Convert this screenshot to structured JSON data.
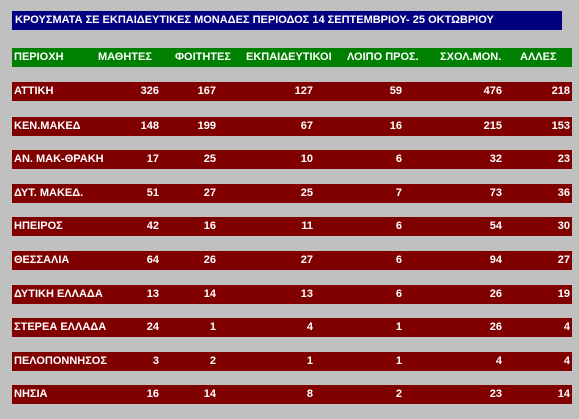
{
  "title": "ΚΡΟΥΣΜΑΤΑ ΣΕ ΕΚΠΑΙΔΕΥΤΙΚΕΣ ΜΟΝΑΔΕΣ  ΠΕΡΙΟΔΟΣ 14 ΣΕΠΤΕΜΒΡΙΟΥ-  25 ΟΚΤΩΒΡΙΟΥ",
  "headers": [
    "ΠΕΡΙΟΧΗ",
    "ΜΑΘΗΤΕΣ",
    "ΦΟΙΤΗΤΕΣ",
    "ΕΚΠΑΙΔΕΥΤΙΚΟΙ",
    "ΛΟΙΠΟ ΠΡΟΣ.",
    "ΣΧΟΛ.ΜΟΝ.",
    "ΑΛΛΕΣ"
  ],
  "rows": [
    {
      "region": "ΑΤΤΙΚΗ",
      "values": [
        "326",
        "167",
        "127",
        "59",
        "476",
        "218"
      ]
    },
    {
      "region": "ΚΕΝ.ΜΑΚΕΔ",
      "values": [
        "148",
        "199",
        "67",
        "16",
        "215",
        "153"
      ]
    },
    {
      "region": "ΑΝ. ΜΑΚ-ΘΡΑΚΗ",
      "values": [
        "17",
        "25",
        "10",
        "6",
        "32",
        "23"
      ]
    },
    {
      "region": "ΔΥΤ. ΜΑΚΕΔ.",
      "values": [
        "51",
        "27",
        "25",
        "7",
        "73",
        "36"
      ]
    },
    {
      "region": "ΗΠΕΙΡΟΣ",
      "values": [
        "42",
        "16",
        "11",
        "6",
        "54",
        "30"
      ]
    },
    {
      "region": "ΘΕΣΣΑΛΙΑ",
      "values": [
        "64",
        "26",
        "27",
        "6",
        "94",
        "27"
      ]
    },
    {
      "region": "ΔΥΤΙΚΗ ΕΛΛΑΔΑ",
      "values": [
        "13",
        "14",
        "13",
        "6",
        "26",
        "19"
      ]
    },
    {
      "region": "ΣΤΕΡΕΑ ΕΛΛΑΔΑ",
      "values": [
        "24",
        "1",
        "4",
        "1",
        "26",
        "4"
      ]
    },
    {
      "region": "ΠΕΛΟΠΟΝΝΗΣΟΣ",
      "values": [
        "3",
        "2",
        "1",
        "1",
        "4",
        "4"
      ]
    },
    {
      "region": "ΝΗΣΙΑ",
      "values": [
        "16",
        "14",
        "8",
        "2",
        "23",
        "14"
      ]
    }
  ],
  "colors": {
    "background": "#c0c0c0",
    "title_bar": "#000080",
    "header_bar": "#008000",
    "row_bar": "#800000",
    "text": "#ffffff"
  }
}
